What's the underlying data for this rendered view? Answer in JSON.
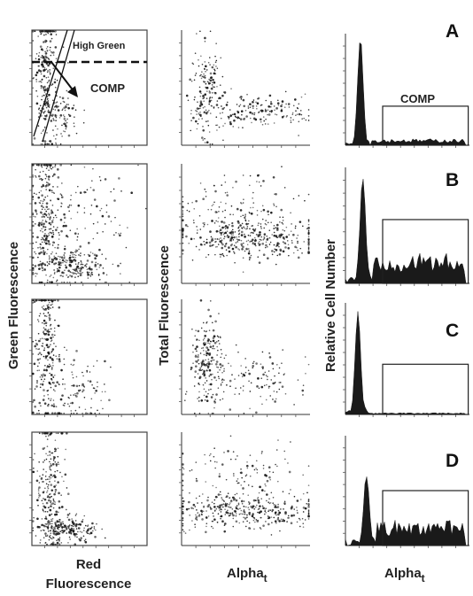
{
  "chart_data": {
    "type": "scatter",
    "description_rows": [
      "A",
      "B",
      "C",
      "D"
    ],
    "columns": [
      {
        "kind": "scatter",
        "ylabel": "Green Fluorescence",
        "xlabel_line1": "Red",
        "xlabel_line2": "Fluorescence"
      },
      {
        "kind": "scatter",
        "ylabel": "Total Fluorescence",
        "xlabel_main": "Alpha",
        "xlabel_sub": "t"
      },
      {
        "kind": "histogram",
        "ylabel": "Relative Cell Number",
        "xlabel_main": "Alpha",
        "xlabel_sub": "t"
      }
    ],
    "annotations": {
      "high_green_label": "High Green",
      "comp_label_scatter": "COMP",
      "comp_label_hist": "COMP"
    },
    "rows": [
      {
        "letter": "A",
        "green_vs_red": {
          "clusters": [
            {
              "cx": 0.12,
              "cy": 0.6,
              "sx": 0.05,
              "sy": 0.3,
              "n": 260
            },
            {
              "cx": 0.25,
              "cy": 0.25,
              "sx": 0.1,
              "sy": 0.1,
              "n": 80
            }
          ]
        },
        "total_vs_alpha": {
          "clusters": [
            {
              "cx": 0.2,
              "cy": 0.45,
              "sx": 0.06,
              "sy": 0.2,
              "n": 180
            },
            {
              "cx": 0.6,
              "cy": 0.3,
              "sx": 0.2,
              "sy": 0.08,
              "n": 160
            }
          ]
        },
        "histogram": {
          "peak_x": 0.12,
          "peak_height": 0.95,
          "tail_level": 0.04,
          "gate_x": [
            0.3,
            0.99
          ],
          "gate_y": 0.35
        }
      },
      {
        "letter": "B",
        "green_vs_red": {
          "clusters": [
            {
              "cx": 0.12,
              "cy": 0.55,
              "sx": 0.06,
              "sy": 0.3,
              "n": 240
            },
            {
              "cx": 0.35,
              "cy": 0.15,
              "sx": 0.15,
              "sy": 0.07,
              "n": 220
            },
            {
              "cx": 0.4,
              "cy": 0.55,
              "sx": 0.25,
              "sy": 0.25,
              "n": 140
            }
          ]
        },
        "total_vs_alpha": {
          "clusters": [
            {
              "cx": 0.5,
              "cy": 0.38,
              "sx": 0.3,
              "sy": 0.08,
              "n": 360
            },
            {
              "cx": 0.45,
              "cy": 0.65,
              "sx": 0.3,
              "sy": 0.15,
              "n": 140
            }
          ]
        },
        "histogram": {
          "peak_x": 0.14,
          "peak_height": 0.9,
          "tail_level": 0.18,
          "gate_x": [
            0.3,
            0.99
          ],
          "gate_y": 0.55
        }
      },
      {
        "letter": "C",
        "green_vs_red": {
          "clusters": [
            {
              "cx": 0.12,
              "cy": 0.6,
              "sx": 0.06,
              "sy": 0.3,
              "n": 240
            },
            {
              "cx": 0.35,
              "cy": 0.2,
              "sx": 0.15,
              "sy": 0.15,
              "n": 120
            }
          ]
        },
        "total_vs_alpha": {
          "clusters": [
            {
              "cx": 0.2,
              "cy": 0.45,
              "sx": 0.06,
              "sy": 0.2,
              "n": 200
            },
            {
              "cx": 0.55,
              "cy": 0.3,
              "sx": 0.2,
              "sy": 0.12,
              "n": 120
            }
          ]
        },
        "histogram": {
          "peak_x": 0.1,
          "peak_height": 0.9,
          "tail_level": 0.01,
          "gate_x": [
            0.3,
            0.99
          ],
          "gate_y": 0.45
        }
      },
      {
        "letter": "D",
        "green_vs_red": {
          "clusters": [
            {
              "cx": 0.15,
              "cy": 0.55,
              "sx": 0.06,
              "sy": 0.3,
              "n": 220
            },
            {
              "cx": 0.3,
              "cy": 0.15,
              "sx": 0.12,
              "sy": 0.06,
              "n": 220
            }
          ]
        },
        "total_vs_alpha": {
          "clusters": [
            {
              "cx": 0.5,
              "cy": 0.3,
              "sx": 0.3,
              "sy": 0.08,
              "n": 340
            },
            {
              "cx": 0.45,
              "cy": 0.6,
              "sx": 0.3,
              "sy": 0.15,
              "n": 120
            }
          ]
        },
        "histogram": {
          "peak_x": 0.17,
          "peak_height": 0.62,
          "tail_level": 0.16,
          "gate_x": [
            0.3,
            0.99
          ],
          "gate_y": 0.5
        }
      }
    ]
  },
  "colors": {
    "ink": "#1a1a1a",
    "axis": "#333333",
    "panel_border": "#444444"
  }
}
